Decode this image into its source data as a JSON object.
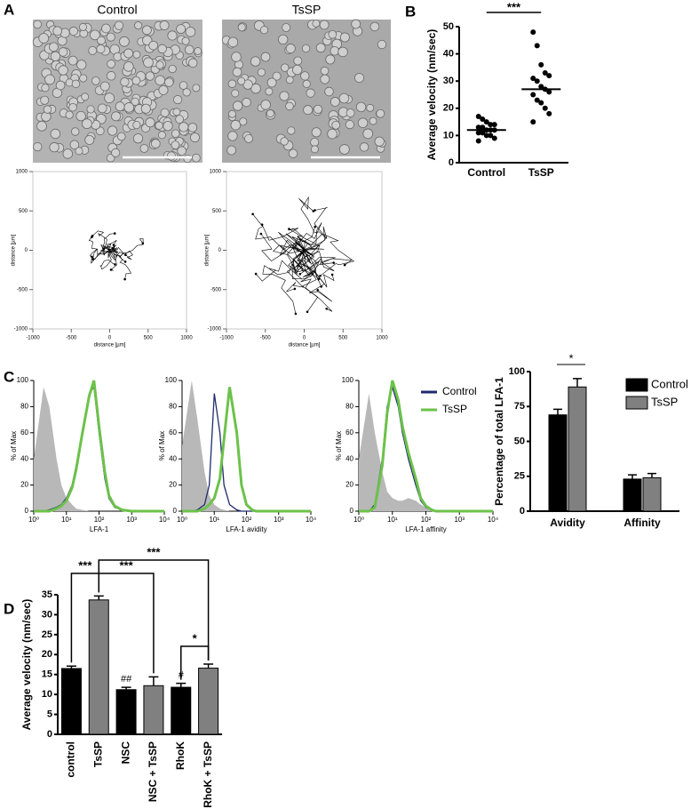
{
  "figure": {
    "panel_labels": [
      "A",
      "B",
      "C",
      "D"
    ]
  },
  "images": {
    "titles": [
      "Control",
      "TsSP"
    ]
  },
  "chart_data": [
    {
      "type": "trajectory",
      "xlabel": "distance [µm]",
      "ylabel": "distance [µm]",
      "xlim": [
        -1000,
        1000
      ],
      "ylim": [
        -1000,
        1000
      ],
      "xticks": [
        -1000,
        -500,
        0,
        500,
        1000
      ],
      "yticks": [
        -1000,
        -500,
        0,
        500,
        1000
      ]
    },
    {
      "type": "trajectory",
      "xlabel": "distance [µm]",
      "ylabel": "distance [µm]",
      "xlim": [
        -1000,
        1000
      ],
      "ylim": [
        -1000,
        1000
      ],
      "xticks": [
        -1000,
        -500,
        0,
        500,
        1000
      ],
      "yticks": [
        -1000,
        -500,
        0,
        500,
        1000
      ]
    },
    {
      "type": "strip",
      "ylabel": "Average velocity (nm/sec)",
      "categories": [
        "Control",
        "TsSP"
      ],
      "values": [
        [
          17,
          16,
          15,
          14,
          14,
          13,
          13,
          12,
          12,
          12,
          11,
          11,
          10,
          10,
          9,
          8
        ],
        [
          48,
          43,
          36,
          33,
          32,
          31,
          30,
          28,
          27,
          26,
          25,
          23,
          22,
          20,
          18,
          15
        ]
      ],
      "means": [
        12,
        27
      ],
      "color": "#000000",
      "ylim": [
        0,
        50
      ],
      "yticks": [
        0,
        10,
        20,
        30,
        40,
        50
      ],
      "annotations": [
        "***"
      ]
    },
    {
      "type": "density",
      "xlabel": "LFA-1",
      "ylabel": "% of Max",
      "xscale": "log",
      "xlim": [
        1,
        10000
      ],
      "ylim": [
        0,
        100
      ],
      "xticks": [
        {
          "value": 1,
          "label": "10⁰"
        },
        {
          "value": 10,
          "label": "10¹"
        },
        {
          "value": 100,
          "label": "10²"
        },
        {
          "value": 1000,
          "label": "10³"
        },
        {
          "value": 10000,
          "label": "10⁴"
        }
      ],
      "yticks": [
        0,
        20,
        40,
        60,
        80,
        100
      ],
      "x": [
        1,
        2,
        3,
        5,
        7,
        10,
        15,
        20,
        30,
        50,
        70,
        100,
        150,
        200,
        300,
        500,
        1000,
        10000
      ],
      "series": [
        {
          "color": "#b8b8b8",
          "area": true,
          "values": [
            40,
            95,
            80,
            40,
            20,
            10,
            5,
            2,
            1,
            0,
            0,
            0,
            0,
            0,
            0,
            0,
            0,
            0
          ]
        },
        {
          "color": "#1f2a6e",
          "values": [
            0,
            0,
            1,
            3,
            5,
            10,
            20,
            35,
            60,
            90,
            95,
            60,
            25,
            10,
            3,
            1,
            0,
            0
          ]
        },
        {
          "color": "#6cc24a",
          "values": [
            0,
            0,
            0,
            2,
            4,
            8,
            18,
            32,
            58,
            88,
            100,
            65,
            30,
            12,
            4,
            1,
            0,
            0
          ]
        }
      ]
    },
    {
      "type": "density",
      "xlabel": "LFA-1 avidity",
      "ylabel": "% of Max",
      "xscale": "log",
      "xlim": [
        1,
        10000
      ],
      "ylim": [
        0,
        100
      ],
      "xticks": [
        {
          "value": 1,
          "label": "10⁰"
        },
        {
          "value": 10,
          "label": "10¹"
        },
        {
          "value": 100,
          "label": "10²"
        },
        {
          "value": 1000,
          "label": "10³"
        },
        {
          "value": 10000,
          "label": "10⁴"
        }
      ],
      "yticks": [
        0,
        20,
        40,
        60,
        80,
        100
      ],
      "x": [
        1,
        2,
        3,
        5,
        7,
        10,
        15,
        20,
        30,
        50,
        70,
        100,
        150,
        200,
        300,
        500,
        1000,
        10000
      ],
      "series": [
        {
          "color": "#b8b8b8",
          "area": true,
          "values": [
            50,
            100,
            70,
            30,
            12,
            5,
            2,
            1,
            0,
            0,
            0,
            0,
            0,
            0,
            0,
            0,
            0,
            0
          ]
        },
        {
          "color": "#1f2a6e",
          "values": [
            0,
            0,
            1,
            5,
            20,
            90,
            60,
            20,
            5,
            1,
            0,
            0,
            0,
            0,
            0,
            0,
            0,
            0
          ]
        },
        {
          "color": "#6cc24a",
          "values": [
            0,
            0,
            0,
            2,
            5,
            10,
            25,
            55,
            95,
            60,
            20,
            5,
            1,
            0,
            0,
            0,
            0,
            0
          ]
        }
      ]
    },
    {
      "type": "density",
      "xlabel": "LFA-1 affinity",
      "ylabel": "% of Max",
      "xscale": "log",
      "xlim": [
        1,
        10000
      ],
      "ylim": [
        0,
        100
      ],
      "xticks": [
        {
          "value": 1,
          "label": "10⁰"
        },
        {
          "value": 10,
          "label": "10¹"
        },
        {
          "value": 100,
          "label": "10²"
        },
        {
          "value": 1000,
          "label": "10³"
        },
        {
          "value": 10000,
          "label": "10⁴"
        }
      ],
      "yticks": [
        0,
        20,
        40,
        60,
        80,
        100
      ],
      "x": [
        1,
        2,
        3,
        5,
        7,
        10,
        15,
        20,
        30,
        50,
        70,
        100,
        150,
        200,
        300,
        500,
        1000,
        10000
      ],
      "legend": "top-right",
      "series": [
        {
          "color": "#b8b8b8",
          "area": true,
          "values": [
            40,
            90,
            60,
            30,
            15,
            10,
            8,
            8,
            10,
            8,
            5,
            3,
            1,
            0,
            0,
            0,
            0,
            0
          ]
        },
        {
          "name": "Control",
          "color": "#1f2a6e",
          "values": [
            0,
            0,
            5,
            40,
            80,
            95,
            80,
            60,
            40,
            20,
            8,
            3,
            1,
            0,
            0,
            0,
            0,
            0
          ]
        },
        {
          "name": "TsSP",
          "color": "#6cc24a",
          "values": [
            0,
            0,
            3,
            35,
            75,
            100,
            85,
            65,
            45,
            25,
            10,
            4,
            1,
            0,
            0,
            0,
            0,
            0
          ]
        }
      ]
    },
    {
      "type": "bar",
      "ylabel": "Percentage of total LFA-1",
      "categories": [
        "Avidity",
        "Affinity"
      ],
      "series": [
        {
          "name": "Control",
          "color": "#000000",
          "values": [
            69,
            23
          ],
          "errors": [
            4,
            3
          ]
        },
        {
          "name": "TsSP",
          "color": "#808080",
          "values": [
            89,
            24
          ],
          "errors": [
            6,
            3
          ]
        }
      ],
      "ylim": [
        0,
        100
      ],
      "yticks": [
        0,
        25,
        50,
        75,
        100
      ],
      "annotations": [
        "*"
      ]
    },
    {
      "type": "bar",
      "ylabel": "Average velocity (nm/sec)",
      "categories": [
        "control",
        "TsSP",
        "NSC",
        "NSC + TsSP",
        "RhoK",
        "RhoK + TsSP"
      ],
      "values": [
        16.5,
        33.7,
        11.2,
        12.2,
        11.8,
        16.6
      ],
      "errors": [
        0.6,
        1,
        0.6,
        2.2,
        1,
        1
      ],
      "colors": [
        "#000000",
        "#808080",
        "#000000",
        "#808080",
        "#000000",
        "#808080"
      ],
      "ylim": [
        0,
        35
      ],
      "yticks": [
        0,
        5,
        10,
        15,
        20,
        25,
        30,
        35
      ],
      "annotations": [
        "***",
        "***",
        "***",
        "*",
        "##",
        "#"
      ]
    }
  ]
}
